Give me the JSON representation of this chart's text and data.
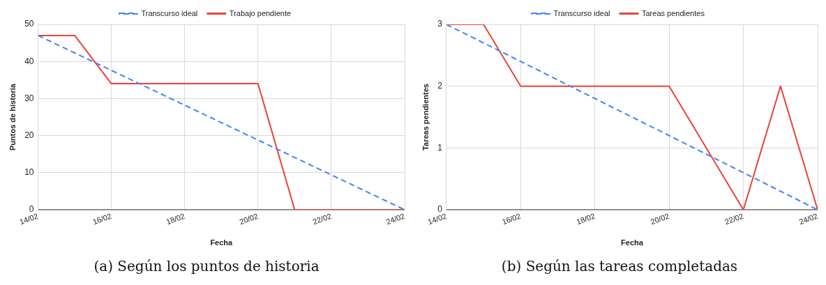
{
  "chart_data": [
    {
      "type": "line",
      "xlabel": "Fecha",
      "ylabel": "Puntos de historia",
      "legend": "top",
      "grid": true,
      "marker": "none",
      "xlim": [
        "--02-14",
        "--02-24"
      ],
      "xticks": [
        {
          "value": "--02-14",
          "label": "14/02"
        },
        {
          "value": "--02-16",
          "label": "16/02"
        },
        {
          "value": "--02-18",
          "label": "18/02"
        },
        {
          "value": "--02-20",
          "label": "20/02"
        },
        {
          "value": "--02-22",
          "label": "22/02"
        },
        {
          "value": "--02-24",
          "label": "24/02"
        }
      ],
      "ylim": [
        0,
        50
      ],
      "yticks": [
        0,
        10,
        20,
        30,
        40,
        50
      ],
      "series": [
        {
          "name": "Transcurso ideal",
          "color": "#4285f4",
          "line_style": "dashed",
          "x": [
            "--02-14",
            "--02-24"
          ],
          "values": [
            47,
            0
          ]
        },
        {
          "name": "Trabajo pendiente",
          "color": "#ea4335",
          "line_style": "solid",
          "x": [
            "--02-14",
            "--02-15",
            "--02-16",
            "--02-17",
            "--02-18",
            "--02-19",
            "--02-20",
            "--02-21",
            "--02-22",
            "--02-23",
            "--02-24"
          ],
          "values": [
            47,
            47,
            34,
            34,
            34,
            34,
            34,
            0,
            0,
            0,
            0
          ]
        }
      ],
      "annotations": [
        "(a) Según los puntos de historia"
      ]
    },
    {
      "type": "line",
      "xlabel": "Fecha",
      "ylabel": "Tareas pendientes",
      "legend": "top",
      "grid": true,
      "marker": "none",
      "xlim": [
        "--02-14",
        "--02-24"
      ],
      "xticks": [
        {
          "value": "--02-14",
          "label": "14/02"
        },
        {
          "value": "--02-16",
          "label": "16/02"
        },
        {
          "value": "--02-18",
          "label": "18/02"
        },
        {
          "value": "--02-20",
          "label": "20/02"
        },
        {
          "value": "--02-22",
          "label": "22/02"
        },
        {
          "value": "--02-24",
          "label": "24/02"
        }
      ],
      "ylim": [
        0,
        3
      ],
      "yticks": [
        0,
        1,
        2,
        3
      ],
      "series": [
        {
          "name": "Transcurso ideal",
          "color": "#4285f4",
          "line_style": "dashed",
          "x": [
            "--02-14",
            "--02-24"
          ],
          "values": [
            3,
            0
          ]
        },
        {
          "name": "Tareas pendientes",
          "color": "#ea4335",
          "line_style": "solid",
          "x": [
            "--02-14",
            "--02-15",
            "--02-16",
            "--02-17",
            "--02-18",
            "--02-19",
            "--02-20",
            "--02-21",
            "--02-22",
            "--02-23",
            "--02-24"
          ],
          "values": [
            3,
            3,
            2,
            2,
            2,
            2,
            2,
            1,
            0,
            2,
            0
          ]
        }
      ],
      "annotations": [
        "(b) Según las tareas completadas"
      ]
    }
  ]
}
